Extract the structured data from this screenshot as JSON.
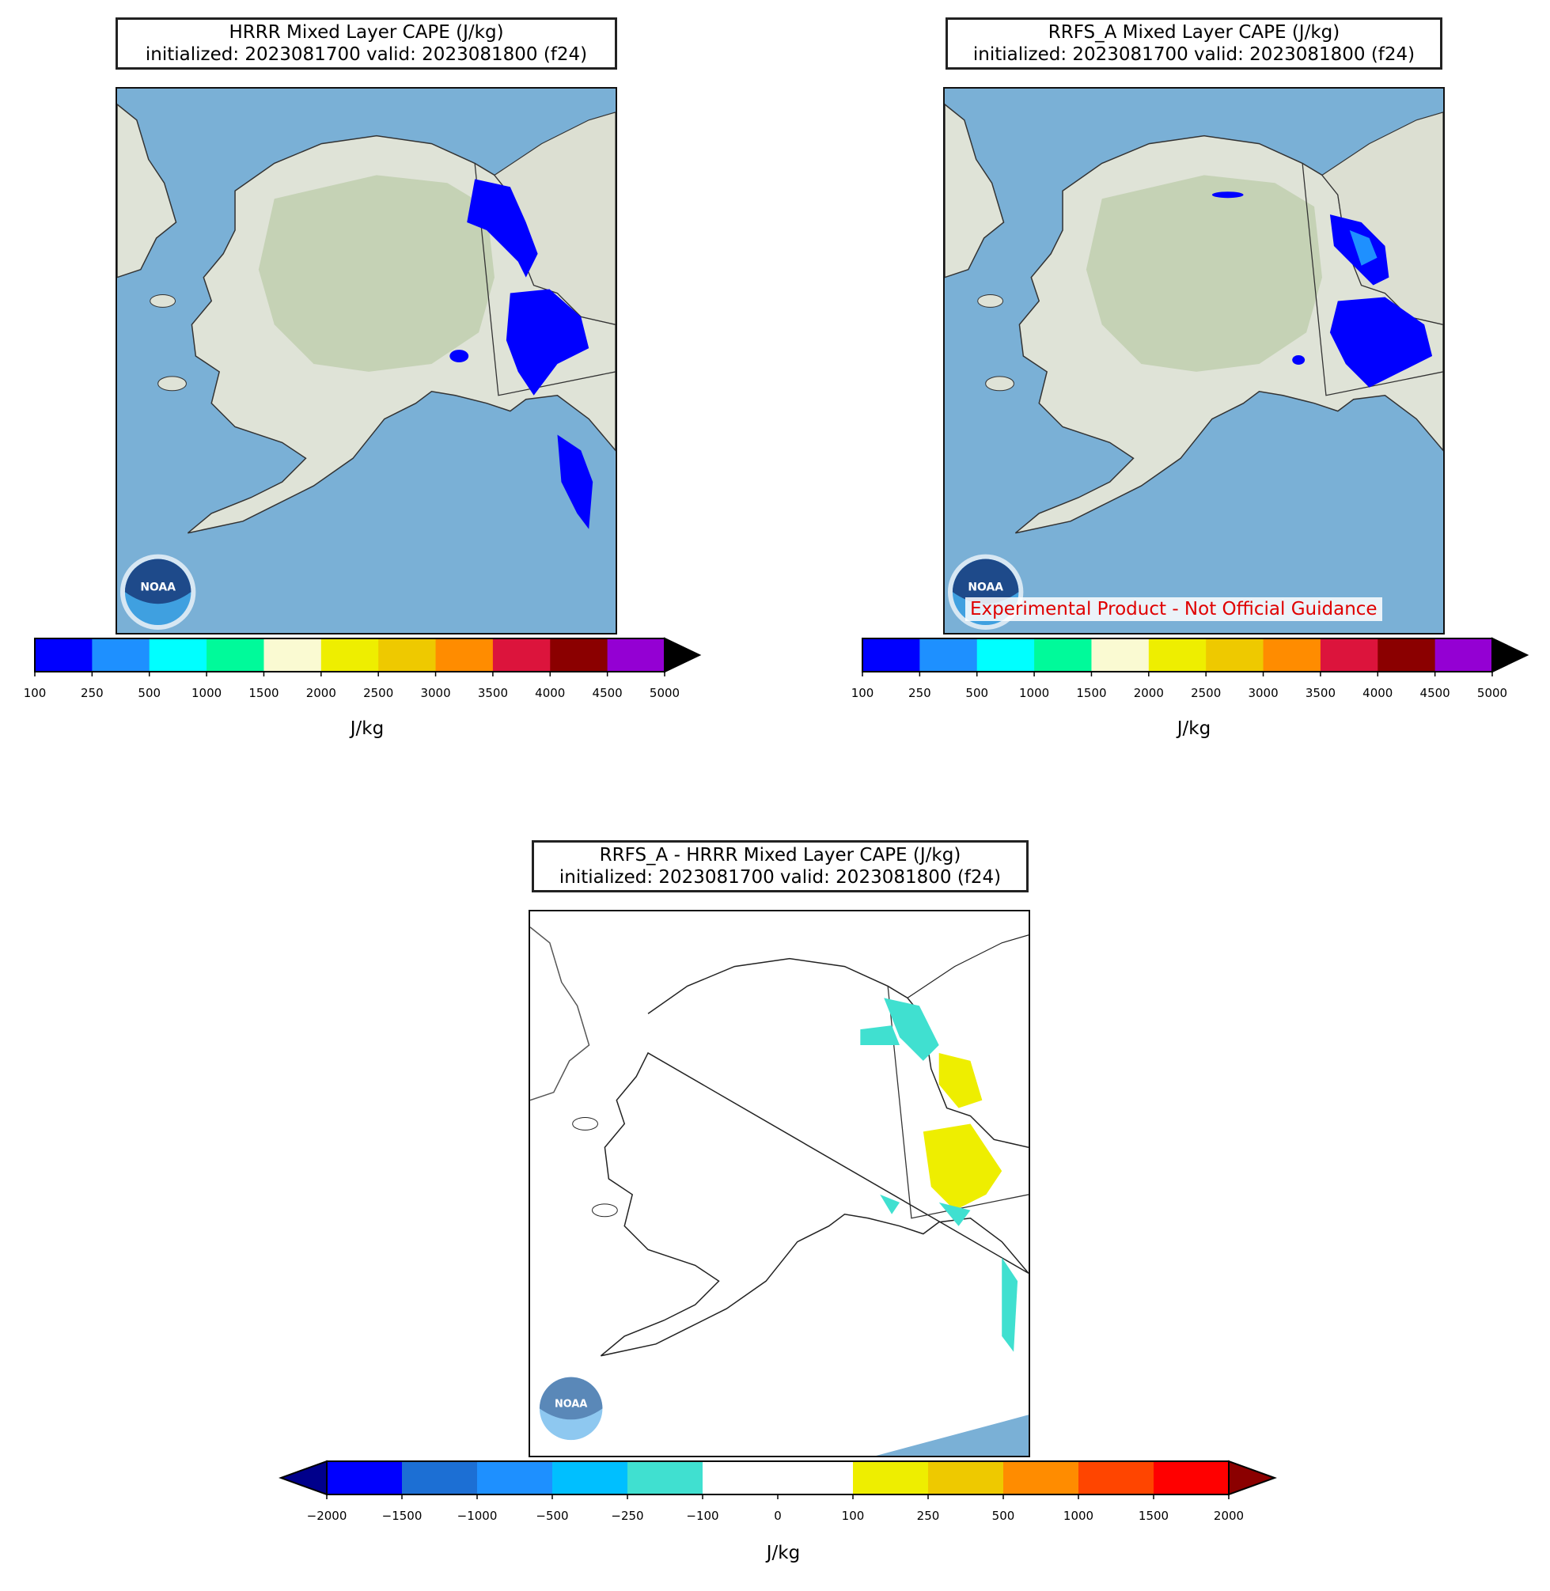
{
  "panels": {
    "hrrr": {
      "title_line1": "HRRR Mixed Layer CAPE (J/kg)",
      "title_line2": "initialized: 2023081700 valid: 2023081800 (f24)"
    },
    "rrfs": {
      "title_line1": "RRFS_A Mixed Layer CAPE (J/kg)",
      "title_line2": "initialized: 2023081700 valid: 2023081800 (f24)",
      "disclaimer": "Experimental Product - Not Official Guidance"
    },
    "diff": {
      "title_line1": "RRFS_A - HRRR Mixed Layer CAPE (J/kg)",
      "title_line2": "initialized: 2023081700 valid: 2023081800 (f24)"
    }
  },
  "colorbar_cape": {
    "ticks": [
      "100",
      "250",
      "500",
      "1000",
      "1500",
      "2000",
      "2500",
      "3000",
      "3500",
      "4000",
      "4500",
      "5000"
    ],
    "colors": [
      "#0000ff",
      "#1e90ff",
      "#00ffff",
      "#00fa9a",
      "#fafad2",
      "#eeee00",
      "#eec900",
      "#ff8c00",
      "#dc143c",
      "#8b0000",
      "#9400d3"
    ],
    "extend_color": "#000000",
    "unit": "J/kg"
  },
  "colorbar_diff": {
    "ticks": [
      "−2000",
      "−1500",
      "−1000",
      "−500",
      "−250",
      "−100",
      "0",
      "100",
      "250",
      "500",
      "1000",
      "1500",
      "2000"
    ],
    "colors": [
      "#0000ff",
      "#1c6fd4",
      "#1e90ff",
      "#00bfff",
      "#40e0d0",
      "#ffffff",
      "#ffffff",
      "#eeee00",
      "#eec900",
      "#ff8c00",
      "#ff4500",
      "#ff0000"
    ],
    "extend_low_color": "#00008b",
    "extend_high_color": "#8b0000",
    "unit": "J/kg"
  },
  "colors": {
    "ocean": "#7ab0d6",
    "land": "#dfe3d7",
    "land_green": "#b9cba6",
    "noaa_navy": "#1e4a8a",
    "noaa_light": "#3fa0e0"
  },
  "icons": [
    "noaa-logo"
  ]
}
